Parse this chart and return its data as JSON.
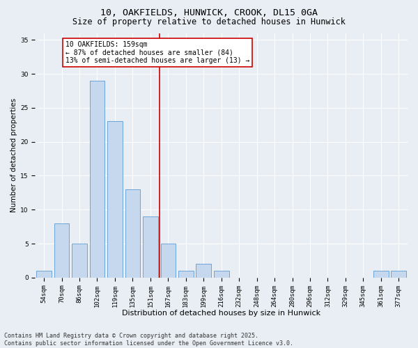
{
  "title": "10, OAKFIELDS, HUNWICK, CROOK, DL15 0GA",
  "subtitle": "Size of property relative to detached houses in Hunwick",
  "xlabel": "Distribution of detached houses by size in Hunwick",
  "ylabel": "Number of detached properties",
  "categories": [
    "54sqm",
    "70sqm",
    "86sqm",
    "102sqm",
    "119sqm",
    "135sqm",
    "151sqm",
    "167sqm",
    "183sqm",
    "199sqm",
    "216sqm",
    "232sqm",
    "248sqm",
    "264sqm",
    "280sqm",
    "296sqm",
    "312sqm",
    "329sqm",
    "345sqm",
    "361sqm",
    "377sqm"
  ],
  "values": [
    1,
    8,
    5,
    29,
    23,
    13,
    9,
    5,
    1,
    2,
    1,
    0,
    0,
    0,
    0,
    0,
    0,
    0,
    0,
    1,
    1
  ],
  "bar_color": "#c5d8ed",
  "bar_edge_color": "#5b9bd5",
  "background_color": "#e8eef4",
  "grid_color": "#ffffff",
  "vline_pos": 6.5,
  "vline_color": "#cc0000",
  "annotation_text": "10 OAKFIELDS: 159sqm\n← 87% of detached houses are smaller (84)\n13% of semi-detached houses are larger (13) →",
  "annotation_box_facecolor": "#ffffff",
  "annotation_box_edgecolor": "#cc0000",
  "ylim": [
    0,
    36
  ],
  "yticks": [
    0,
    5,
    10,
    15,
    20,
    25,
    30,
    35
  ],
  "footer": "Contains HM Land Registry data © Crown copyright and database right 2025.\nContains public sector information licensed under the Open Government Licence v3.0.",
  "title_fontsize": 9.5,
  "subtitle_fontsize": 8.5,
  "tick_fontsize": 6.5,
  "ylabel_fontsize": 7.5,
  "xlabel_fontsize": 8,
  "annotation_fontsize": 7,
  "footer_fontsize": 6
}
